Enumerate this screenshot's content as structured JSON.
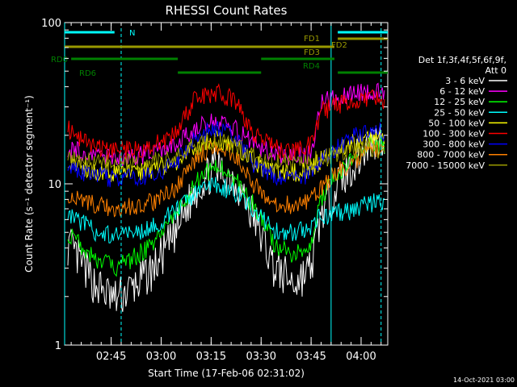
{
  "chart_data": {
    "type": "line",
    "title": "RHESSI Count Rates",
    "xlabel": "Start Time (17-Feb-06 02:31:02)",
    "ylabel": "Count Rate (s⁻¹ detector segment⁻¹)",
    "y_scale": "log",
    "ylim": [
      1,
      100
    ],
    "xlim": [
      "02:31:02",
      "04:08:00"
    ],
    "x_ticks": [
      "02:45",
      "03:00",
      "03:15",
      "03:30",
      "03:45",
      "04:00"
    ],
    "y_ticks": [
      "1",
      "10",
      "100"
    ],
    "grid": false,
    "legend_header": [
      "Det 1f,3f,4f,5f,6f,9f,",
      "Att 0"
    ],
    "legend_position": "right",
    "timestamp": "14-Oct-2021 03:00",
    "x_sample": [
      "02:32",
      "02:40",
      "02:46",
      "02:52",
      "02:58",
      "03:04",
      "03:10",
      "03:16",
      "03:22",
      "03:28",
      "03:34",
      "03:40",
      "03:45",
      "03:48",
      "03:53",
      "03:58",
      "04:03",
      "04:07"
    ],
    "series": [
      {
        "name": "3 - 6 keV",
        "color": "#000000",
        "values": [
          4.2,
          2.4,
          1.9,
          2.3,
          3.0,
          4.8,
          9.0,
          12.5,
          10.8,
          6.0,
          3.0,
          2.4,
          3.0,
          6.5,
          10.0,
          13.5,
          18.0,
          20.0
        ]
      },
      {
        "name": "6 - 12 keV",
        "color": "#ff00ff",
        "values": [
          16.5,
          15.0,
          14.5,
          14.8,
          15.5,
          17.0,
          22.0,
          24.5,
          22.0,
          17.5,
          15.0,
          14.5,
          15.5,
          32.0,
          34.0,
          36.0,
          38.0,
          37.0
        ]
      },
      {
        "name": "12 - 25 keV",
        "color": "#00ff00",
        "values": [
          5.0,
          3.5,
          3.0,
          3.5,
          4.3,
          6.0,
          10.0,
          13.0,
          11.0,
          7.2,
          4.2,
          3.6,
          4.3,
          8.0,
          11.5,
          14.5,
          17.5,
          17.0
        ]
      },
      {
        "name": "25 - 50 keV",
        "color": "#00ffff",
        "values": [
          6.5,
          5.1,
          4.7,
          5.0,
          5.5,
          6.7,
          8.5,
          10.0,
          8.9,
          6.8,
          5.2,
          4.9,
          5.5,
          6.3,
          6.6,
          6.9,
          7.6,
          7.7
        ]
      },
      {
        "name": "50 - 100 keV",
        "color": "#ffff00",
        "values": [
          13.5,
          12.0,
          11.6,
          11.8,
          12.4,
          13.5,
          17.0,
          19.0,
          17.0,
          13.5,
          11.8,
          11.7,
          12.3,
          14.0,
          16.0,
          18.0,
          19.5,
          19.0
        ]
      },
      {
        "name": "100 - 300 keV",
        "color": "#ff0000",
        "values": [
          22.0,
          16.5,
          16.0,
          16.3,
          17.5,
          20.0,
          33.0,
          37.0,
          33.0,
          20.0,
          16.5,
          16.0,
          17.5,
          28.0,
          31.0,
          33.0,
          35.0,
          31.0
        ]
      },
      {
        "name": "300 - 800 keV",
        "color": "#0000ff",
        "values": [
          12.5,
          11.2,
          10.8,
          11.0,
          11.6,
          13.0,
          19.5,
          22.0,
          19.5,
          13.0,
          11.2,
          11.0,
          11.6,
          14.0,
          17.0,
          19.5,
          22.0,
          21.0
        ]
      },
      {
        "name": "800 - 7000 keV",
        "color": "#ff8000",
        "values": [
          8.2,
          7.4,
          7.0,
          7.3,
          7.8,
          9.0,
          14.0,
          17.5,
          15.0,
          9.8,
          7.5,
          7.3,
          7.8,
          9.5,
          12.0,
          14.0,
          16.5,
          15.5
        ]
      },
      {
        "name": "7000 - 15000 keV",
        "color": "#999900",
        "values": [
          14.0,
          13.5,
          13.3,
          13.4,
          13.8,
          14.5,
          17.0,
          18.5,
          17.0,
          14.5,
          13.5,
          13.3,
          13.8,
          14.5,
          15.5,
          16.5,
          17.0,
          16.0
        ]
      }
    ],
    "state_bars": [
      {
        "label": "N",
        "color": "#00ffff",
        "segments": [
          [
            "02:31:02",
            "02:46"
          ],
          [
            "03:53",
            "04:08"
          ]
        ]
      },
      {
        "label": "FD1",
        "color": "#999900",
        "segments": [
          [
            "02:31:02",
            "03:52"
          ]
        ]
      },
      {
        "label": "FD2",
        "color": "#999900",
        "segments": [
          [
            "03:53",
            "04:08"
          ]
        ]
      },
      {
        "label": "FD3",
        "color": "#999900",
        "segments": []
      },
      {
        "label": "RD0",
        "color": "#008000",
        "segments": [
          [
            "02:33",
            "03:05"
          ],
          [
            "03:30",
            "03:52"
          ]
        ]
      },
      {
        "label": "RD4",
        "color": "#008000",
        "segments": []
      },
      {
        "label": "RD6",
        "color": "#008000",
        "segments": [
          [
            "03:05",
            "03:30"
          ],
          [
            "03:53",
            "04:08"
          ]
        ]
      }
    ],
    "vlines": [
      {
        "time": "02:31:02",
        "style": "solid",
        "color": "#00ffff"
      },
      {
        "time": "02:48",
        "style": "dashed",
        "color": "#00ffff"
      },
      {
        "time": "03:51",
        "style": "solid",
        "color": "#00ffff"
      },
      {
        "time": "04:06",
        "style": "dashed",
        "color": "#00ffff"
      }
    ]
  }
}
